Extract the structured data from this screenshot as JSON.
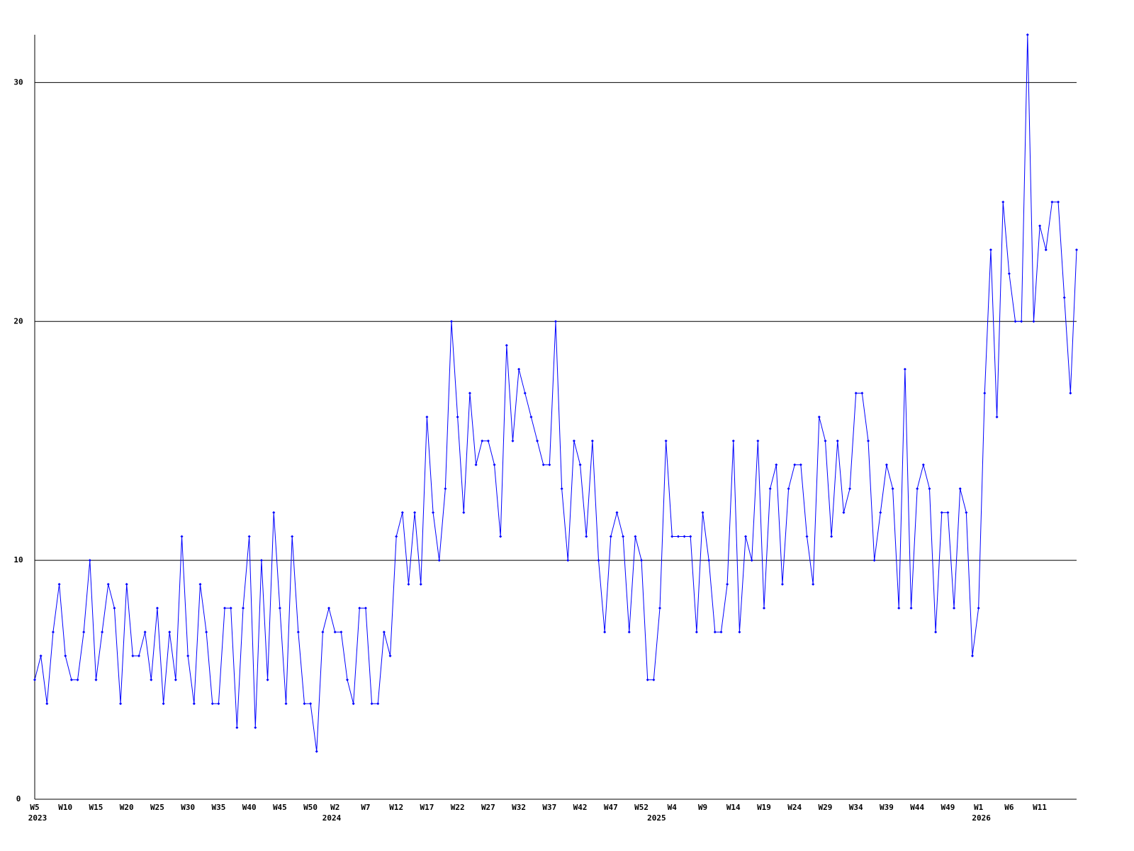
{
  "chart_data": {
    "type": "line",
    "categories": [
      "W5",
      null,
      null,
      null,
      null,
      "W10",
      null,
      null,
      null,
      null,
      "W15",
      null,
      null,
      null,
      null,
      "W20",
      null,
      null,
      null,
      null,
      "W25",
      null,
      null,
      null,
      null,
      "W30",
      null,
      null,
      null,
      null,
      "W35",
      null,
      null,
      null,
      null,
      "W40",
      null,
      null,
      null,
      null,
      "W45",
      null,
      null,
      null,
      null,
      "W50",
      null,
      null,
      null,
      "W2",
      null,
      null,
      null,
      null,
      "W7",
      null,
      null,
      null,
      null,
      "W12",
      null,
      null,
      null,
      null,
      "W17",
      null,
      null,
      null,
      null,
      "W22",
      null,
      null,
      null,
      null,
      "W27",
      null,
      null,
      null,
      null,
      "W32",
      null,
      null,
      null,
      null,
      "W37",
      null,
      null,
      null,
      null,
      "W42",
      null,
      null,
      null,
      null,
      "W47",
      null,
      null,
      null,
      null,
      "W52",
      null,
      null,
      null,
      null,
      "W4",
      null,
      null,
      null,
      null,
      "W9",
      null,
      null,
      null,
      null,
      "W14",
      null,
      null,
      null,
      null,
      "W19",
      null,
      null,
      null,
      null,
      "W24",
      null,
      null,
      null,
      null,
      "W29",
      null,
      null,
      null,
      null,
      "W34",
      null,
      null,
      null,
      null,
      "W39",
      null,
      null,
      null,
      null,
      "W44",
      null,
      null,
      null,
      null,
      "W49",
      null,
      null,
      null,
      null,
      "W1",
      null,
      null,
      null,
      null,
      "W6",
      null,
      null,
      null,
      null,
      "W11",
      null,
      null,
      null,
      null,
      null,
      null
    ],
    "year_labels": [
      "2023",
      null,
      null,
      null,
      null,
      null,
      null,
      null,
      null,
      null,
      null,
      null,
      null,
      null,
      null,
      null,
      null,
      null,
      null,
      null,
      null,
      null,
      null,
      null,
      null,
      null,
      null,
      null,
      null,
      null,
      null,
      null,
      null,
      null,
      null,
      null,
      null,
      null,
      null,
      null,
      null,
      null,
      null,
      null,
      null,
      null,
      null,
      null,
      "2024",
      null,
      null,
      null,
      null,
      null,
      null,
      null,
      null,
      null,
      null,
      null,
      null,
      null,
      null,
      null,
      null,
      null,
      null,
      null,
      null,
      null,
      null,
      null,
      null,
      null,
      null,
      null,
      null,
      null,
      null,
      null,
      null,
      null,
      null,
      null,
      null,
      null,
      null,
      null,
      null,
      null,
      null,
      null,
      null,
      null,
      null,
      null,
      null,
      null,
      null,
      null,
      null,
      "2025",
      null,
      null,
      null,
      null,
      null,
      null,
      null,
      null,
      null,
      null,
      null,
      null,
      null,
      null,
      null,
      null,
      null,
      null,
      null,
      null,
      null,
      null,
      null,
      null,
      null,
      null,
      null,
      null,
      null,
      null,
      null,
      null,
      null,
      null,
      null,
      null,
      null,
      null,
      null,
      null,
      null,
      null,
      null,
      null,
      null,
      null,
      null,
      null,
      null,
      null,
      null,
      null,
      "2026",
      null,
      null,
      null,
      null,
      null,
      null,
      null,
      null,
      null,
      null,
      null,
      null,
      null,
      null,
      null,
      null
    ],
    "values": [
      5,
      6,
      4,
      7,
      9,
      6,
      5,
      5,
      7,
      10,
      5,
      7,
      9,
      8,
      4,
      9,
      6,
      6,
      7,
      5,
      8,
      4,
      7,
      5,
      11,
      6,
      4,
      9,
      7,
      4,
      4,
      8,
      8,
      3,
      8,
      11,
      3,
      10,
      5,
      12,
      8,
      4,
      11,
      7,
      4,
      4,
      2,
      7,
      8,
      7,
      7,
      5,
      4,
      8,
      8,
      4,
      4,
      7,
      6,
      11,
      12,
      9,
      12,
      9,
      16,
      12,
      10,
      13,
      20,
      16,
      12,
      17,
      14,
      15,
      15,
      14,
      11,
      19,
      15,
      18,
      17,
      16,
      15,
      14,
      14,
      20,
      13,
      10,
      15,
      14,
      11,
      15,
      10,
      7,
      11,
      12,
      11,
      7,
      11,
      10,
      5,
      5,
      8,
      15,
      11,
      11,
      11,
      11,
      7,
      12,
      10,
      7,
      7,
      9,
      15,
      7,
      11,
      10,
      15,
      8,
      13,
      14,
      9,
      13,
      14,
      14,
      11,
      9,
      16,
      15,
      11,
      15,
      12,
      13,
      17,
      17,
      15,
      10,
      12,
      14,
      13,
      8,
      18,
      8,
      13,
      14,
      13,
      7,
      12,
      12,
      8,
      13,
      12,
      6,
      8,
      17,
      23,
      16,
      25,
      22,
      20,
      20,
      32,
      20,
      24,
      23,
      25,
      25,
      21,
      17,
      23
    ],
    "color": "#0000ff",
    "ylim": [
      0,
      32
    ],
    "yticks": [
      0,
      10,
      20,
      30
    ],
    "grid": true
  }
}
